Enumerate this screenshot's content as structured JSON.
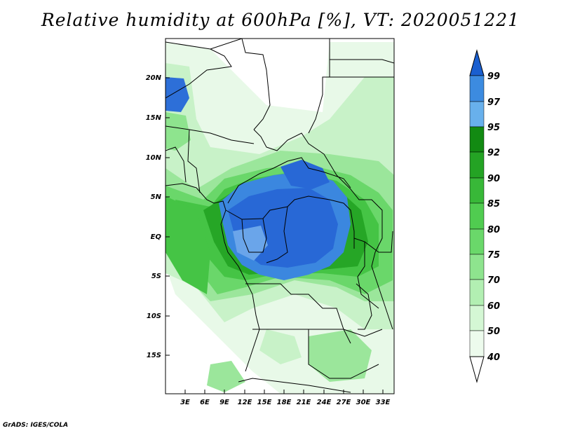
{
  "title": "Relative humidity at 600hPa [%], VT: 2020051221",
  "footer": "GrADS: IGES/COLA",
  "map": {
    "lat_ticks": [
      "20N",
      "15N",
      "10N",
      "5N",
      "EQ",
      "5S",
      "10S",
      "15S"
    ],
    "lon_ticks": [
      "3E",
      "6E",
      "9E",
      "12E",
      "15E",
      "18E",
      "21E",
      "24E",
      "27E",
      "30E",
      "33E"
    ]
  },
  "colorbar": {
    "labels": [
      "99",
      "97",
      "95",
      "92",
      "90",
      "85",
      "80",
      "75",
      "70",
      "60",
      "50",
      "40"
    ],
    "colors": [
      "#1a5fd0",
      "#3c8be0",
      "#68b0ec",
      "#128a12",
      "#24a324",
      "#38b838",
      "#50cc50",
      "#6ad86a",
      "#8ee48e",
      "#b2efb2",
      "#d4f7d4",
      "#edfbed",
      "#ffffff"
    ]
  }
}
